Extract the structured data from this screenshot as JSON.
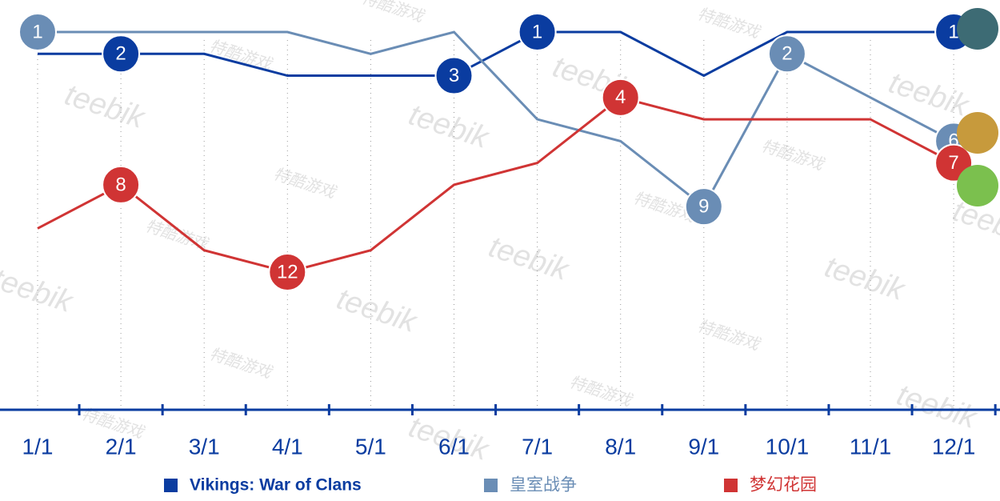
{
  "chart_data": {
    "type": "line",
    "categories": [
      "1/1",
      "2/1",
      "3/1",
      "4/1",
      "5/1",
      "6/1",
      "7/1",
      "8/1",
      "9/1",
      "10/1",
      "11/1",
      "12/1"
    ],
    "ylim": [
      1,
      12
    ],
    "y_inverted": true,
    "series": [
      {
        "name": "Vikings: War of Clans",
        "color": "#0a3ca0",
        "values": [
          2,
          2,
          2,
          3,
          3,
          3,
          1,
          1,
          3,
          1,
          1,
          1
        ],
        "labeled": [
          1,
          5,
          6,
          11
        ]
      },
      {
        "name": "皇室战争",
        "color": "#6a8db5",
        "values": [
          1,
          1,
          1,
          1,
          2,
          1,
          5,
          6,
          9,
          2,
          4,
          6
        ],
        "labeled": [
          0,
          8,
          9,
          11
        ]
      },
      {
        "name": "梦幻花园",
        "color": "#d03434",
        "values": [
          10,
          8,
          11,
          12,
          11,
          8,
          7,
          4,
          5,
          5,
          5,
          7
        ],
        "labeled": [
          1,
          3,
          7,
          11
        ]
      }
    ],
    "watermark": [
      "teebik",
      "特酷游戏"
    ]
  }
}
